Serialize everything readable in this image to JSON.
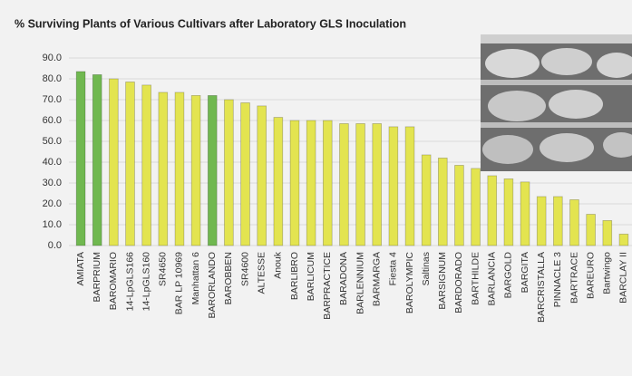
{
  "chart_data": {
    "type": "bar",
    "title": "% Surviving Plants of Various Cultivars after Laboratory GLS Inoculation",
    "categories": [
      "AMIATA",
      "BARPRIUM",
      "BAROMARIO",
      "14-LpGLS166",
      "14-LpGLS160",
      "SR4650",
      "BAR LP 10969",
      "Manhattan 6",
      "BARORLANDO",
      "BAROBBEN",
      "SR4600",
      "ALTESSE",
      "Anouk",
      "BARLIBRO",
      "BARLICUM",
      "BARPRACTICE",
      "BARADONA",
      "BARLENNIUM",
      "BARMARGA",
      "Fiesta 4",
      "BAROLYMPIC",
      "Saltinas",
      "BARSIGNUM",
      "BARDORADO",
      "BARTHILDE",
      "BARLANCIA",
      "BARGOLD",
      "BARGITA",
      "BARCRISTALLA",
      "PINNACLE 3",
      "BARTRACE",
      "BAREURO",
      "Bartwingo",
      "BARCLAY II"
    ],
    "values": [
      83.5,
      82,
      80,
      78.5,
      77,
      73.5,
      73.5,
      72,
      72,
      70,
      68.5,
      67,
      61.5,
      60,
      60,
      60,
      58.5,
      58.5,
      58.5,
      57,
      57,
      43.5,
      42,
      38.5,
      37,
      33.5,
      32,
      30.5,
      23.5,
      23.5,
      22,
      15,
      12,
      5.5
    ],
    "colors": [
      "#70b850",
      "#70b850",
      "#e3e450",
      "#e3e450",
      "#e3e450",
      "#e3e450",
      "#e3e450",
      "#e3e450",
      "#70b850",
      "#e3e450",
      "#e3e450",
      "#e3e450",
      "#e3e450",
      "#e3e450",
      "#e3e450",
      "#e3e450",
      "#e3e450",
      "#e3e450",
      "#e3e450",
      "#e3e450",
      "#e3e450",
      "#e3e450",
      "#e3e450",
      "#e3e450",
      "#e3e450",
      "#e3e450",
      "#e3e450",
      "#e3e450",
      "#e3e450",
      "#e3e450",
      "#e3e450",
      "#e3e450",
      "#e3e450",
      "#e3e450"
    ],
    "ylim": [
      0,
      90
    ],
    "yticks": [
      {
        "value": 0,
        "label": "0.0"
      },
      {
        "value": 10,
        "label": "10.0"
      },
      {
        "value": 20,
        "label": "20.0"
      },
      {
        "value": 30,
        "label": "30.0"
      },
      {
        "value": 40,
        "label": "40.0"
      },
      {
        "value": 50,
        "label": "50.0"
      },
      {
        "value": 60,
        "label": "60.0"
      },
      {
        "value": 70,
        "label": "70.0"
      },
      {
        "value": 80,
        "label": "80.0"
      },
      {
        "value": 90,
        "label": "90.0"
      }
    ],
    "grid": true
  }
}
